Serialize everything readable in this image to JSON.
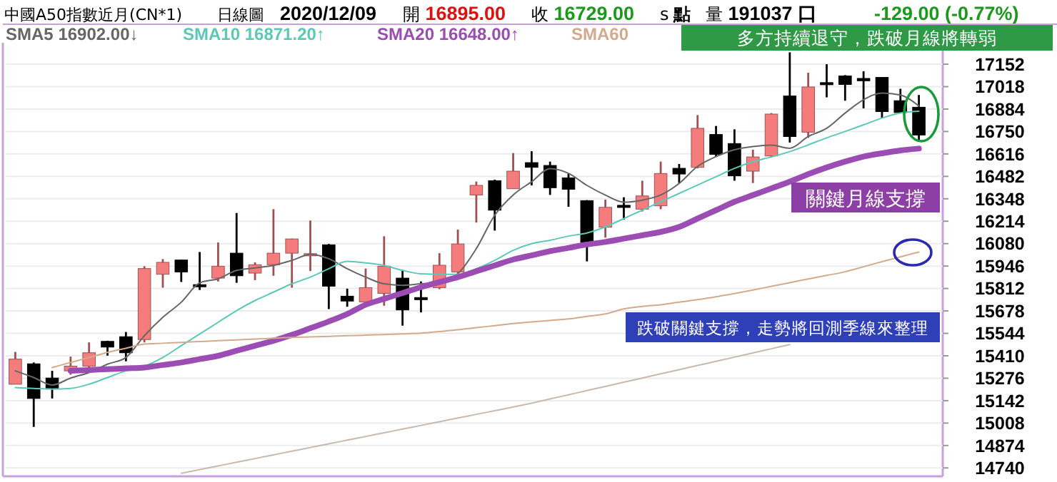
{
  "chart_data": {
    "type": "candlestick",
    "title": "中國A50指數近月(CN*1)",
    "subtitle": "日線圖",
    "categories": [
      null,
      null,
      null,
      null,
      null,
      null,
      null,
      null,
      null,
      null,
      null,
      null,
      null,
      null,
      null,
      null,
      null,
      null,
      null,
      null,
      null,
      null,
      null,
      null,
      null,
      null,
      null,
      null,
      null,
      null,
      null,
      null,
      null,
      null,
      null,
      null,
      null,
      null,
      null,
      null,
      null,
      null,
      null,
      null,
      null,
      null,
      null,
      null,
      null,
      null
    ],
    "ohlc": [
      [
        15240,
        15433,
        15240,
        15390
      ],
      [
        15362,
        15370,
        14985,
        15155
      ],
      [
        15277,
        15320,
        15155,
        15217
      ],
      [
        15320,
        15405,
        15297,
        15348
      ],
      [
        15348,
        15490,
        15320,
        15428
      ],
      [
        15496,
        15500,
        15411,
        15462
      ],
      [
        15524,
        15552,
        15377,
        15428
      ],
      [
        15507,
        15945,
        15490,
        15931
      ],
      [
        15897,
        15988,
        15817,
        15968
      ],
      [
        15982,
        15985,
        15851,
        15911
      ],
      [
        15835,
        16030,
        15803,
        15828
      ],
      [
        15874,
        16087,
        15854,
        15945
      ],
      [
        16023,
        16263,
        15846,
        15888
      ],
      [
        15904,
        15968,
        15862,
        15954
      ],
      [
        15954,
        16286,
        15888,
        16023
      ],
      [
        16023,
        16110,
        15817,
        16108
      ],
      [
        16012,
        16218,
        15916,
        16020
      ],
      [
        16073,
        16078,
        15689,
        15826
      ],
      [
        15766,
        15811,
        15703,
        15737
      ],
      [
        15732,
        15931,
        15732,
        15817
      ],
      [
        15783,
        16124,
        15709,
        15945
      ],
      [
        15874,
        15922,
        15590,
        15684
      ],
      [
        15758,
        15854,
        15669,
        15752
      ],
      [
        15817,
        16023,
        15808,
        15951
      ],
      [
        15911,
        16164,
        15888,
        16078
      ],
      [
        16371,
        16451,
        16206,
        16428
      ],
      [
        16456,
        16462,
        16158,
        16280
      ],
      [
        16408,
        16621,
        16408,
        16513
      ],
      [
        16564,
        16632,
        16428,
        16536
      ],
      [
        16547,
        16570,
        16371,
        16414
      ],
      [
        16473,
        16499,
        16300,
        16405
      ],
      [
        16337,
        16340,
        15974,
        16087
      ],
      [
        16178,
        16343,
        16116,
        16297
      ],
      [
        16309,
        16357,
        16223,
        16303
      ],
      [
        16286,
        16456,
        16272,
        16365
      ],
      [
        16306,
        16570,
        16286,
        16499
      ],
      [
        16530,
        16556,
        16442,
        16496
      ],
      [
        16536,
        16848,
        16530,
        16769
      ],
      [
        16732,
        16783,
        16598,
        16613
      ],
      [
        16678,
        16763,
        16456,
        16485
      ],
      [
        16513,
        16641,
        16442,
        16598
      ],
      [
        16604,
        16860,
        16598,
        16854
      ],
      [
        16962,
        17223,
        16684,
        16720
      ],
      [
        16746,
        17101,
        16712,
        17016
      ],
      [
        17042,
        17152,
        16954,
        17036
      ],
      [
        17082,
        17087,
        16934,
        17031
      ],
      [
        17067,
        17110,
        16888,
        17053
      ],
      [
        17073,
        17073,
        16831,
        16869
      ],
      [
        16934,
        17005,
        16863,
        16863
      ],
      [
        16895,
        16968,
        16698,
        16729
      ]
    ],
    "colors": [
      "#f47c7c",
      "#000000",
      "#000000",
      "#f47c7c",
      "#f47c7c",
      "#000000",
      "#000000",
      "#f47c7c",
      "#f47c7c",
      "#000000",
      "#000000",
      "#f47c7c",
      "#000000",
      "#f47c7c",
      "#f47c7c",
      "#f47c7c",
      "#f47c7c",
      "#000000",
      "#000000",
      "#f47c7c",
      "#f47c7c",
      "#000000",
      "#000000",
      "#f47c7c",
      "#f47c7c",
      "#f47c7c",
      "#000000",
      "#f47c7c",
      "#000000",
      "#000000",
      "#000000",
      "#000000",
      "#f47c7c",
      "#000000",
      "#f47c7c",
      "#f47c7c",
      "#000000",
      "#f47c7c",
      "#000000",
      "#000000",
      "#f47c7c",
      "#f47c7c",
      "#000000",
      "#f47c7c",
      "#000000",
      "#000000",
      "#000000",
      "#000000",
      "#000000",
      "#000000"
    ],
    "series": [
      {
        "type": "line",
        "name": "SMA5",
        "color": "#666666",
        "values": [
          15320,
          15280,
          15235,
          15277,
          15310,
          15360,
          15400,
          15530,
          15640,
          15730,
          15846,
          15870,
          15920,
          15935,
          15950,
          15980,
          16016,
          15990,
          15930,
          15880,
          15840,
          15831,
          15840,
          15846,
          15900,
          16050,
          16250,
          16371,
          16450,
          16528,
          16500,
          16428,
          16370,
          16328,
          16340,
          16371,
          16440,
          16542,
          16600,
          16641,
          16660,
          16669,
          16650,
          16720,
          16769,
          16860,
          16940,
          16980,
          16968,
          16902
        ]
      },
      {
        "type": "line",
        "name": "SMA10",
        "color": "#5cc8b8",
        "values": [
          15220,
          15215,
          15211,
          15215,
          15240,
          15280,
          15320,
          15348,
          15400,
          15470,
          15540,
          15610,
          15680,
          15740,
          15790,
          15840,
          15880,
          15930,
          15974,
          15965,
          15950,
          15920,
          15900,
          15897,
          15897,
          15930,
          15980,
          16040,
          16080,
          16100,
          16125,
          16144,
          16180,
          16230,
          16280,
          16330,
          16380,
          16430,
          16480,
          16530,
          16570,
          16598,
          16630,
          16670,
          16712,
          16750,
          16790,
          16830,
          16860,
          16871
        ]
      },
      {
        "type": "line",
        "name": "SMA20",
        "color": "#9b4db3",
        "values": [
          null,
          null,
          null,
          15320,
          15325,
          15330,
          15335,
          15340,
          15355,
          15370,
          15390,
          15410,
          15440,
          15470,
          15500,
          15535,
          15575,
          15615,
          15660,
          15715,
          15750,
          15785,
          15820,
          15850,
          15880,
          15915,
          15950,
          15985,
          16010,
          16035,
          16055,
          16075,
          16090,
          16110,
          16130,
          16150,
          16180,
          16230,
          16280,
          16330,
          16370,
          16410,
          16450,
          16495,
          16535,
          16570,
          16600,
          16620,
          16637,
          16648
        ]
      },
      {
        "type": "line",
        "name": "SMA60",
        "color": "#d4aa8c",
        "values": [
          null,
          null,
          15340,
          15370,
          15400,
          15430,
          15455,
          15480,
          15485,
          15490,
          15495,
          15500,
          15505,
          15510,
          15515,
          15520,
          15523,
          15526,
          15530,
          15533,
          15537,
          15541,
          15545,
          15555,
          15565,
          15578,
          15590,
          15603,
          15612,
          15621,
          15630,
          15645,
          15660,
          15690,
          15705,
          15715,
          15730,
          15745,
          15762,
          15782,
          15803,
          15825,
          15847,
          15869,
          15890,
          15912,
          15942,
          15972,
          16001,
          16030
        ]
      },
      {
        "type": "line",
        "color": "#c9b8ae",
        "values": [
          null,
          null,
          null,
          null,
          null,
          null,
          null,
          null,
          null,
          14708,
          14730,
          14752,
          14774,
          14796,
          14818,
          14840,
          14862,
          14884,
          14906,
          14928,
          14950,
          14972,
          14994,
          15016,
          15038,
          15060,
          15082,
          15104,
          15127,
          15152,
          15177,
          15202,
          15227,
          15252,
          15277,
          15302,
          15327,
          15352,
          15377,
          15402,
          15427,
          15452,
          15477,
          null,
          null,
          null,
          null,
          null,
          null,
          null
        ]
      }
    ],
    "ylim": [
      14690,
      17280
    ],
    "yticks": [
      14740,
      14874,
      15008,
      15142,
      15276,
      15410,
      15544,
      15678,
      15812,
      15946,
      16080,
      16214,
      16348,
      16482,
      16616,
      16750,
      16884,
      17018,
      17152
    ],
    "grid": "y",
    "legend": "top left",
    "annotations": [
      "2020/12/09",
      "開 16895.00",
      "收 16729.00",
      "s 點",
      "量 191037 口",
      "-129.00 (-0.77%)",
      "16902.00↓",
      "16871.20↑",
      "16648.00↑",
      "多方持續退守，跌破月線將轉弱",
      "關鍵月線支撐",
      "跌破關鍵支撐，走勢將回測季線來整理"
    ]
  }
}
